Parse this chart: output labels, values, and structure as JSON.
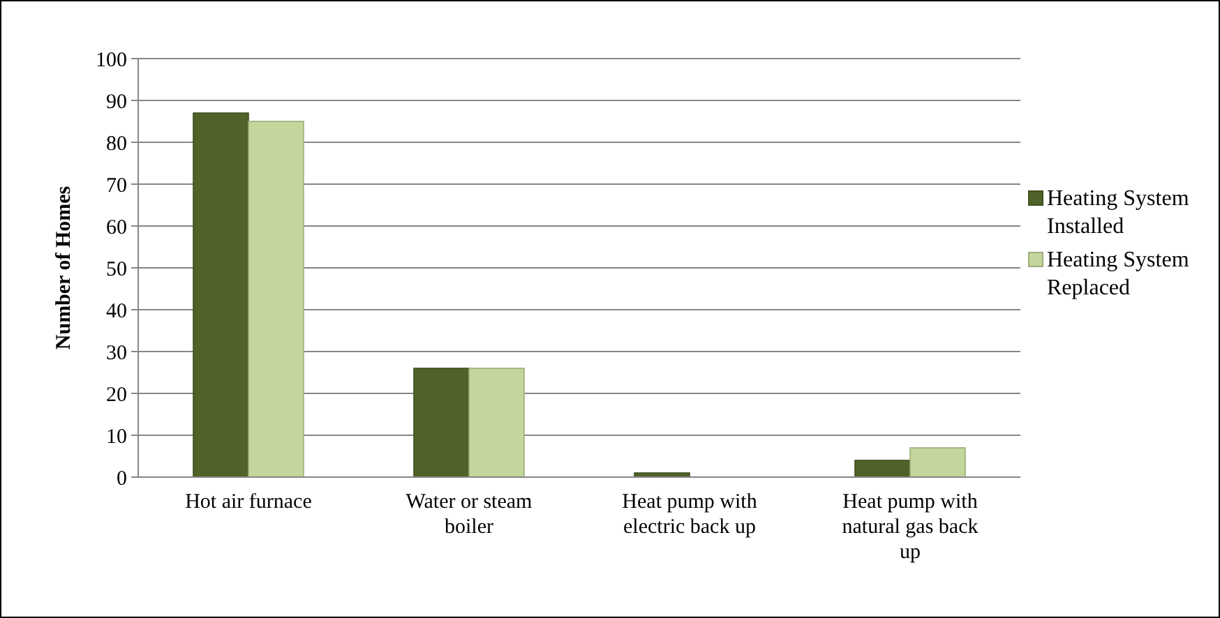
{
  "chart_data": {
    "type": "bar",
    "ylabel": "Number of Homes",
    "categories": [
      "Hot air furnace",
      "Water or steam boiler",
      "Heat pump with electric back up",
      "Heat pump with natural gas back up"
    ],
    "series": [
      {
        "name": "Heating System Installed",
        "color": "#4f6228",
        "values": [
          87,
          26,
          1,
          4
        ]
      },
      {
        "name": "Heating System Replaced",
        "color": "#c3d69b",
        "values": [
          85,
          26,
          0,
          7
        ]
      }
    ],
    "ylim": [
      0,
      100
    ],
    "yticks": [
      0,
      10,
      20,
      30,
      40,
      50,
      60,
      70,
      80,
      90,
      100
    ],
    "grid": "y",
    "legend": "right"
  }
}
